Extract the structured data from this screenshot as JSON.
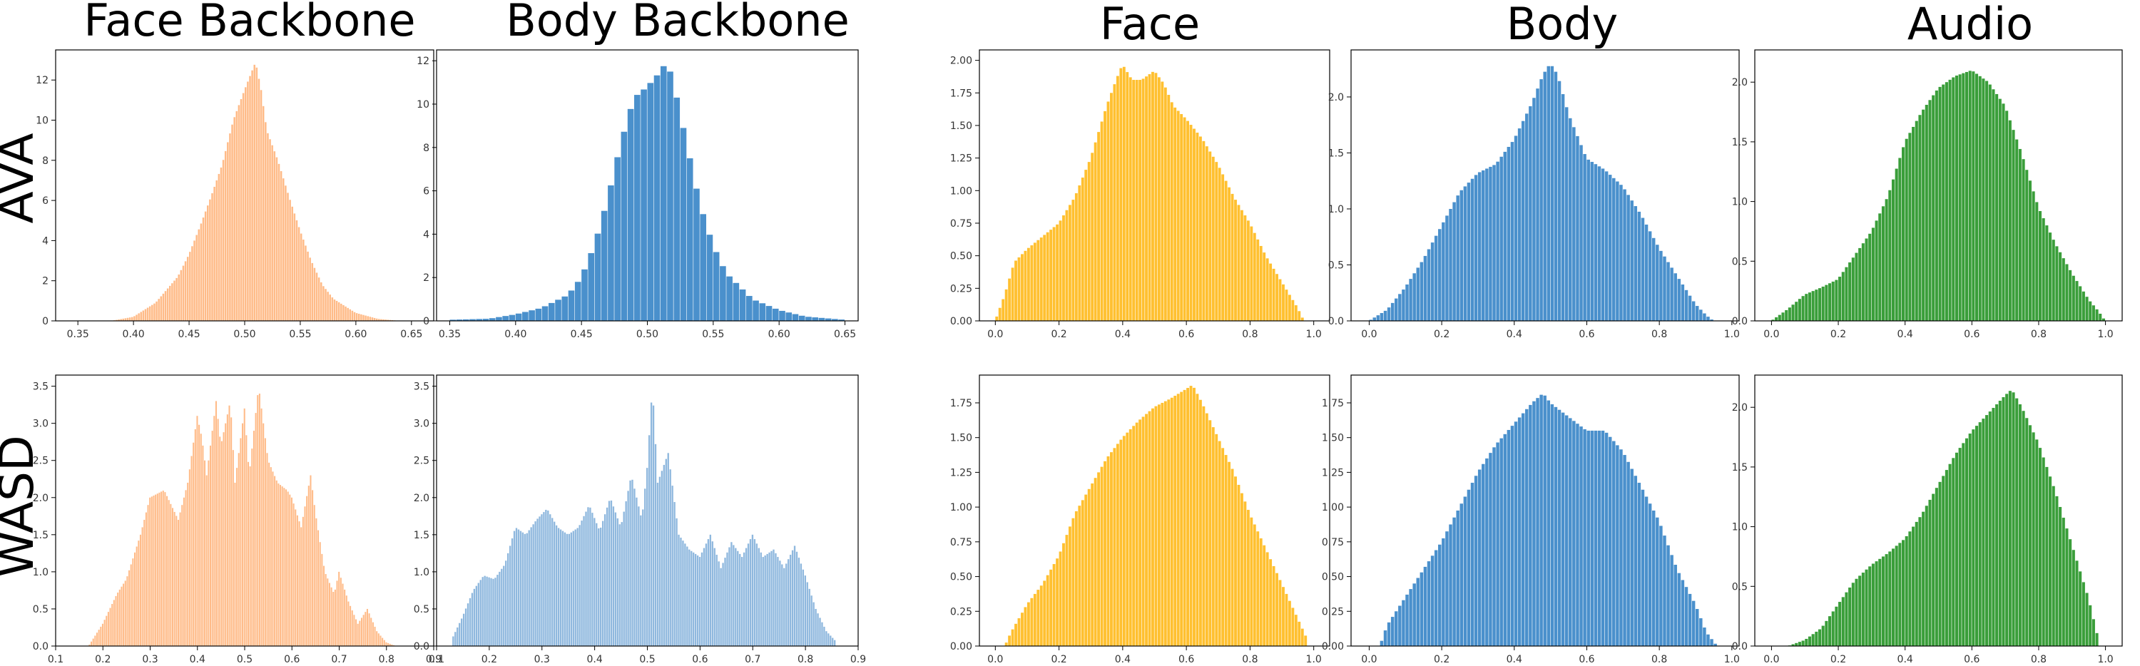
{
  "column_titles": [
    "Face Backbone",
    "Body Backbone",
    "Face",
    "Body",
    "Audio"
  ],
  "row_labels": [
    "AVA",
    "WASD"
  ],
  "colors": {
    "orange": "#ffbb88",
    "blue": "#4a90cc",
    "lightblue": "#8fb8de",
    "gold": "#ffc030",
    "green": "#3a9e3a"
  },
  "chart_data": [
    {
      "id": "ava-face-backbone",
      "type": "bar",
      "row": 0,
      "col": 0,
      "color": "#ffbb88",
      "xlim": [
        0.33,
        0.67
      ],
      "ylim": [
        0,
        13.5
      ],
      "xticks": [
        0.35,
        0.4,
        0.45,
        0.5,
        0.55,
        0.6,
        0.65
      ],
      "xtick_labels": [
        "0.35",
        "0.40",
        "0.45",
        "0.50",
        "0.55",
        "0.60",
        "0.65"
      ],
      "yticks": [
        0,
        2,
        4,
        6,
        8,
        10,
        12
      ],
      "ytick_labels": [
        "0",
        "2",
        "4",
        "6",
        "8",
        "10",
        "12"
      ],
      "bin_width": 0.002,
      "x": [
        0.38,
        0.4,
        0.42,
        0.44,
        0.45,
        0.46,
        0.47,
        0.48,
        0.49,
        0.5,
        0.505,
        0.51,
        0.515,
        0.52,
        0.53,
        0.54,
        0.55,
        0.56,
        0.57,
        0.58,
        0.6,
        0.62,
        0.64
      ],
      "y": [
        0,
        0.2,
        0.9,
        2.2,
        3.3,
        4.7,
        6.2,
        7.8,
        10.0,
        11.5,
        12.2,
        12.9,
        11.5,
        9.5,
        8.0,
        6.2,
        4.5,
        3.0,
        1.8,
        1.1,
        0.4,
        0.1,
        0
      ]
    },
    {
      "id": "ava-body-backbone",
      "type": "bar",
      "row": 0,
      "col": 1,
      "color": "#4a90cc",
      "xlim": [
        0.34,
        0.66
      ],
      "ylim": [
        0,
        12.5
      ],
      "xticks": [
        0.35,
        0.4,
        0.45,
        0.5,
        0.55,
        0.6,
        0.65
      ],
      "xtick_labels": [
        "0.35",
        "0.40",
        "0.45",
        "0.50",
        "0.55",
        "0.60",
        "0.65"
      ],
      "yticks": [
        0,
        2,
        4,
        6,
        8,
        10,
        12
      ],
      "ytick_labels": [
        "0",
        "2",
        "4",
        "6",
        "8",
        "10",
        "12"
      ],
      "bin_width": 0.005,
      "x": [
        0.35,
        0.38,
        0.4,
        0.42,
        0.44,
        0.45,
        0.46,
        0.47,
        0.48,
        0.49,
        0.5,
        0.51,
        0.515,
        0.52,
        0.53,
        0.54,
        0.55,
        0.56,
        0.58,
        0.6,
        0.62,
        0.65
      ],
      "y": [
        0.05,
        0.1,
        0.3,
        0.6,
        1.2,
        2.0,
        3.5,
        5.6,
        8.2,
        10.3,
        10.8,
        11.5,
        12.0,
        11.0,
        8.2,
        5.4,
        3.5,
        2.2,
        1.0,
        0.5,
        0.2,
        0.05
      ]
    },
    {
      "id": "ava-face",
      "type": "bar",
      "row": 0,
      "col": 2,
      "color": "#ffc030",
      "xlim": [
        -0.05,
        1.05
      ],
      "ylim": [
        0,
        2.08
      ],
      "xticks": [
        0,
        0.2,
        0.4,
        0.6,
        0.8,
        1.0
      ],
      "xtick_labels": [
        "0.0",
        "0.2",
        "0.4",
        "0.6",
        "0.8",
        "1.0"
      ],
      "yticks": [
        0,
        0.25,
        0.5,
        0.75,
        1.0,
        1.25,
        1.5,
        1.75,
        2.0
      ],
      "ytick_labels": [
        "0.00",
        "0.25",
        "0.50",
        "0.75",
        "1.00",
        "1.25",
        "1.50",
        "1.75",
        "2.00"
      ],
      "bin_width": 0.01,
      "x": [
        0.0,
        0.03,
        0.06,
        0.1,
        0.15,
        0.2,
        0.25,
        0.3,
        0.35,
        0.38,
        0.4,
        0.43,
        0.46,
        0.5,
        0.53,
        0.56,
        0.6,
        0.65,
        0.7,
        0.75,
        0.8,
        0.85,
        0.9,
        0.95,
        0.97
      ],
      "y": [
        0,
        0.2,
        0.45,
        0.55,
        0.65,
        0.75,
        0.95,
        1.25,
        1.65,
        1.85,
        1.97,
        1.85,
        1.85,
        1.92,
        1.82,
        1.65,
        1.55,
        1.4,
        1.2,
        0.95,
        0.75,
        0.5,
        0.3,
        0.1,
        0
      ]
    },
    {
      "id": "ava-body",
      "type": "bar",
      "row": 0,
      "col": 3,
      "color": "#4a90cc",
      "xlim": [
        -0.05,
        1.02
      ],
      "ylim": [
        0,
        2.42
      ],
      "xticks": [
        0,
        0.2,
        0.4,
        0.6,
        0.8,
        1.0
      ],
      "xtick_labels": [
        "0.0",
        "0.2",
        "0.4",
        "0.6",
        "0.8",
        "1.0"
      ],
      "yticks": [
        0,
        0.5,
        1.0,
        1.5,
        2.0
      ],
      "ytick_labels": [
        "0.0",
        "0.5",
        "1.0",
        "1.5",
        "2.0"
      ],
      "bin_width": 0.01,
      "x": [
        0.0,
        0.05,
        0.1,
        0.15,
        0.2,
        0.25,
        0.3,
        0.35,
        0.4,
        0.45,
        0.48,
        0.5,
        0.52,
        0.55,
        0.6,
        0.65,
        0.7,
        0.75,
        0.8,
        0.85,
        0.9,
        0.93,
        0.95
      ],
      "y": [
        0,
        0.1,
        0.3,
        0.55,
        0.85,
        1.15,
        1.32,
        1.4,
        1.62,
        1.95,
        2.2,
        2.3,
        2.2,
        1.85,
        1.45,
        1.35,
        1.2,
        0.95,
        0.65,
        0.4,
        0.15,
        0.05,
        0
      ]
    },
    {
      "id": "ava-audio",
      "type": "bar",
      "row": 0,
      "col": 4,
      "color": "#3a9e3a",
      "xlim": [
        -0.05,
        1.05
      ],
      "ylim": [
        0,
        2.27
      ],
      "xticks": [
        0,
        0.2,
        0.4,
        0.6,
        0.8,
        1.0
      ],
      "xtick_labels": [
        "0.0",
        "0.2",
        "0.4",
        "0.6",
        "0.8",
        "1.0"
      ],
      "yticks": [
        0,
        0.5,
        1.0,
        1.5,
        2.0
      ],
      "ytick_labels": [
        "0.0",
        "0.5",
        "1.0",
        "1.5",
        "2.0"
      ],
      "bin_width": 0.01,
      "x": [
        0.0,
        0.05,
        0.1,
        0.15,
        0.2,
        0.25,
        0.3,
        0.35,
        0.4,
        0.45,
        0.5,
        0.55,
        0.6,
        0.65,
        0.7,
        0.75,
        0.8,
        0.85,
        0.9,
        0.95,
        0.98,
        1.0
      ],
      "y": [
        0,
        0.1,
        0.22,
        0.28,
        0.35,
        0.55,
        0.75,
        1.05,
        1.5,
        1.75,
        1.95,
        2.05,
        2.1,
        2.0,
        1.8,
        1.4,
        0.95,
        0.65,
        0.4,
        0.18,
        0.08,
        0
      ]
    },
    {
      "id": "wasd-face-backbone",
      "type": "bar",
      "row": 1,
      "col": 0,
      "color": "#ffbb88",
      "xlim": [
        0.1,
        0.9
      ],
      "ylim": [
        0,
        3.65
      ],
      "xticks": [
        0.1,
        0.2,
        0.3,
        0.4,
        0.5,
        0.6,
        0.7,
        0.8,
        0.9
      ],
      "xtick_labels": [
        "0.1",
        "0.2",
        "0.3",
        "0.4",
        "0.5",
        "0.6",
        "0.7",
        "0.8",
        "0.9"
      ],
      "yticks": [
        0,
        0.5,
        1.0,
        1.5,
        2.0,
        2.5,
        3.0,
        3.5
      ],
      "ytick_labels": [
        "0.0",
        "0.5",
        "1.0",
        "1.5",
        "2.0",
        "2.5",
        "3.0",
        "3.5"
      ],
      "bin_width": 0.004,
      "x": [
        0.17,
        0.2,
        0.23,
        0.25,
        0.28,
        0.3,
        0.33,
        0.36,
        0.38,
        0.4,
        0.41,
        0.42,
        0.44,
        0.45,
        0.47,
        0.48,
        0.5,
        0.51,
        0.53,
        0.54,
        0.55,
        0.57,
        0.59,
        0.6,
        0.62,
        0.64,
        0.65,
        0.67,
        0.69,
        0.7,
        0.72,
        0.74,
        0.76,
        0.78,
        0.8,
        0.82
      ],
      "y": [
        0,
        0.3,
        0.7,
        0.9,
        1.5,
        2.0,
        2.1,
        1.7,
        2.2,
        3.1,
        2.8,
        2.3,
        3.3,
        2.7,
        3.3,
        2.2,
        3.2,
        2.3,
        3.5,
        3.0,
        2.5,
        2.2,
        2.1,
        2.0,
        1.6,
        2.3,
        1.8,
        1.0,
        0.7,
        1.0,
        0.6,
        0.3,
        0.5,
        0.2,
        0.05,
        0
      ]
    },
    {
      "id": "wasd-body-backbone",
      "type": "bar",
      "row": 1,
      "col": 1,
      "color": "#8fb8de",
      "xlim": [
        0.1,
        0.9
      ],
      "ylim": [
        0,
        3.65
      ],
      "xticks": [
        0.1,
        0.2,
        0.3,
        0.4,
        0.5,
        0.6,
        0.7,
        0.8,
        0.9
      ],
      "xtick_labels": [
        "0.1",
        "0.2",
        "0.3",
        "0.4",
        "0.5",
        "0.6",
        "0.7",
        "0.8",
        "0.9"
      ],
      "yticks": [
        0,
        0.5,
        1.0,
        1.5,
        2.0,
        2.5,
        3.0,
        3.5
      ],
      "ytick_labels": [
        "0.0",
        "0.5",
        "1.0",
        "1.5",
        "2.0",
        "2.5",
        "3.0",
        "3.5"
      ],
      "bin_width": 0.004,
      "x": [
        0.13,
        0.15,
        0.17,
        0.19,
        0.21,
        0.23,
        0.25,
        0.27,
        0.29,
        0.31,
        0.33,
        0.35,
        0.37,
        0.39,
        0.41,
        0.43,
        0.45,
        0.47,
        0.49,
        0.5,
        0.51,
        0.52,
        0.54,
        0.56,
        0.58,
        0.6,
        0.62,
        0.64,
        0.66,
        0.68,
        0.7,
        0.72,
        0.74,
        0.76,
        0.78,
        0.8,
        0.82,
        0.84,
        0.86
      ],
      "y": [
        0.1,
        0.4,
        0.75,
        0.95,
        0.9,
        1.1,
        1.6,
        1.5,
        1.7,
        1.85,
        1.6,
        1.5,
        1.6,
        1.9,
        1.55,
        2.0,
        1.6,
        2.3,
        1.7,
        2.4,
        3.5,
        2.2,
        2.6,
        1.5,
        1.3,
        1.2,
        1.5,
        1.05,
        1.4,
        1.2,
        1.5,
        1.2,
        1.3,
        1.05,
        1.35,
        0.95,
        0.5,
        0.2,
        0.05
      ]
    },
    {
      "id": "wasd-face",
      "type": "bar",
      "row": 1,
      "col": 2,
      "color": "#ffc030",
      "xlim": [
        -0.05,
        1.05
      ],
      "ylim": [
        0,
        1.95
      ],
      "xticks": [
        0,
        0.2,
        0.4,
        0.6,
        0.8,
        1.0
      ],
      "xtick_labels": [
        "0.0",
        "0.2",
        "0.4",
        "0.6",
        "0.8",
        "1.0"
      ],
      "yticks": [
        0,
        0.25,
        0.5,
        0.75,
        1.0,
        1.25,
        1.5,
        1.75
      ],
      "ytick_labels": [
        "0.00",
        "0.25",
        "0.50",
        "0.75",
        "1.00",
        "1.25",
        "1.50",
        "1.75"
      ],
      "bin_width": 0.01,
      "x": [
        0.03,
        0.05,
        0.1,
        0.15,
        0.2,
        0.25,
        0.3,
        0.35,
        0.4,
        0.45,
        0.5,
        0.55,
        0.6,
        0.62,
        0.65,
        0.7,
        0.75,
        0.8,
        0.85,
        0.9,
        0.95,
        0.98
      ],
      "y": [
        0,
        0.1,
        0.3,
        0.45,
        0.65,
        0.95,
        1.15,
        1.35,
        1.5,
        1.62,
        1.72,
        1.78,
        1.85,
        1.88,
        1.75,
        1.5,
        1.25,
        0.95,
        0.7,
        0.45,
        0.2,
        0.05
      ]
    },
    {
      "id": "wasd-body",
      "type": "bar",
      "row": 1,
      "col": 3,
      "color": "#4a90cc",
      "xlim": [
        -0.05,
        1.02
      ],
      "ylim": [
        0,
        1.95
      ],
      "xticks": [
        0,
        0.2,
        0.4,
        0.6,
        0.8,
        1.0
      ],
      "xtick_labels": [
        "0.0",
        "0.2",
        "0.4",
        "0.6",
        "0.8",
        "1.0"
      ],
      "yticks": [
        0,
        0.25,
        0.5,
        0.75,
        1.0,
        1.25,
        1.5,
        1.75
      ],
      "ytick_labels": [
        "0.00",
        "0.25",
        "0.50",
        "0.75",
        "1.00",
        "1.25",
        "1.50",
        "1.75"
      ],
      "bin_width": 0.01,
      "x": [
        0.03,
        0.05,
        0.1,
        0.15,
        0.2,
        0.25,
        0.3,
        0.35,
        0.4,
        0.45,
        0.48,
        0.5,
        0.55,
        0.6,
        0.65,
        0.7,
        0.75,
        0.8,
        0.85,
        0.9,
        0.93,
        0.96
      ],
      "y": [
        0,
        0.15,
        0.35,
        0.55,
        0.75,
        1.0,
        1.25,
        1.45,
        1.6,
        1.75,
        1.82,
        1.75,
        1.65,
        1.55,
        1.55,
        1.4,
        1.15,
        0.9,
        0.55,
        0.3,
        0.1,
        0
      ]
    },
    {
      "id": "wasd-audio",
      "type": "bar",
      "row": 1,
      "col": 4,
      "color": "#3a9e3a",
      "xlim": [
        -0.05,
        1.05
      ],
      "ylim": [
        0,
        2.27
      ],
      "xticks": [
        0,
        0.2,
        0.4,
        0.6,
        0.8,
        1.0
      ],
      "xtick_labels": [
        "0.0",
        "0.2",
        "0.4",
        "0.6",
        "0.8",
        "1.0"
      ],
      "yticks": [
        0,
        0.5,
        1.0,
        1.5,
        2.0
      ],
      "ytick_labels": [
        "0.0",
        "0.5",
        "1.0",
        "1.5",
        "2.0"
      ],
      "bin_width": 0.01,
      "x": [
        0.05,
        0.1,
        0.15,
        0.2,
        0.25,
        0.3,
        0.35,
        0.4,
        0.45,
        0.5,
        0.55,
        0.6,
        0.65,
        0.7,
        0.72,
        0.75,
        0.8,
        0.85,
        0.9,
        0.95,
        0.98
      ],
      "y": [
        0,
        0.05,
        0.15,
        0.35,
        0.55,
        0.68,
        0.78,
        0.9,
        1.1,
        1.35,
        1.6,
        1.8,
        1.95,
        2.1,
        2.15,
        2.0,
        1.7,
        1.3,
        0.85,
        0.4,
        0.05
      ]
    }
  ]
}
